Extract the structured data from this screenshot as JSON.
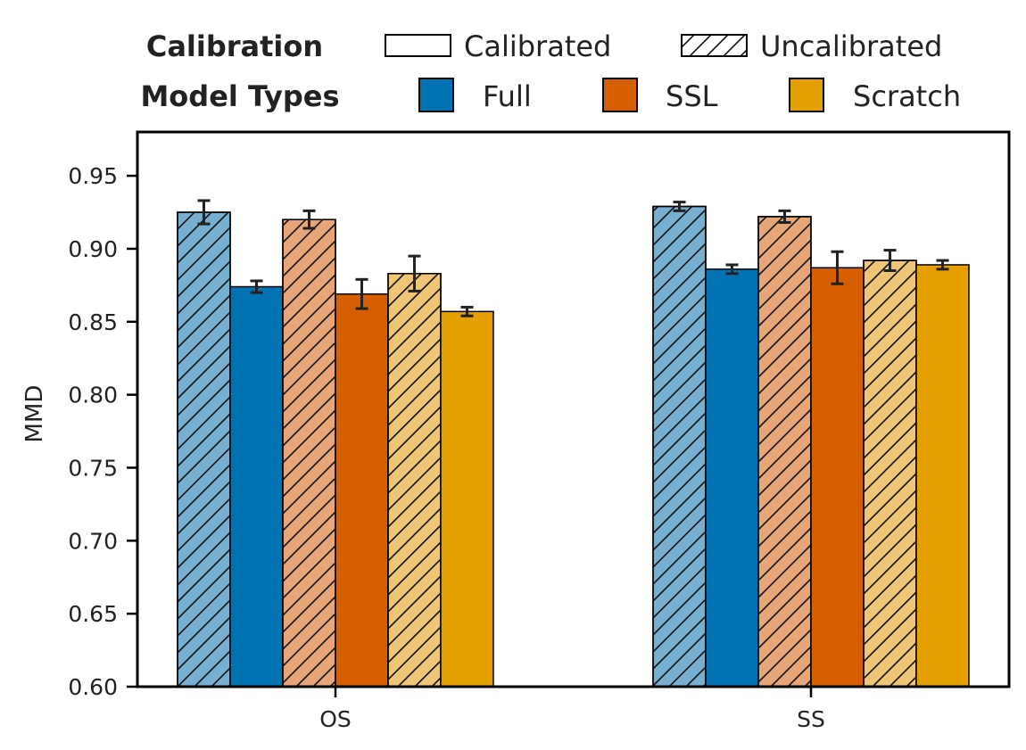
{
  "legend": {
    "calibration_title": "Calibration",
    "calibrated_label": "Calibrated",
    "uncalibrated_label": "Uncalibrated",
    "model_types_title": "Model Types",
    "model_labels": [
      "Full",
      "SSL",
      "Scratch"
    ]
  },
  "colors": {
    "Full": "#0173b2",
    "SSL": "#d55e00",
    "Scratch": "#e5a000",
    "Full_light": "#77afd1",
    "SSL_light": "#e6a677",
    "Scratch_light": "#eec676"
  },
  "chart_data": {
    "type": "bar",
    "ylabel": "MMD",
    "xlabel": "",
    "ylim": [
      0.6,
      0.98
    ],
    "yticks": [
      0.6,
      0.65,
      0.7,
      0.75,
      0.8,
      0.85,
      0.9,
      0.95
    ],
    "categories": [
      "OS",
      "SS"
    ],
    "series": [
      {
        "model": "Full",
        "calibration": "Uncalibrated",
        "values": [
          0.925,
          0.929
        ],
        "errors": [
          0.008,
          0.003
        ]
      },
      {
        "model": "Full",
        "calibration": "Calibrated",
        "values": [
          0.874,
          0.886
        ],
        "errors": [
          0.004,
          0.003
        ]
      },
      {
        "model": "SSL",
        "calibration": "Uncalibrated",
        "values": [
          0.92,
          0.922
        ],
        "errors": [
          0.006,
          0.004
        ]
      },
      {
        "model": "SSL",
        "calibration": "Calibrated",
        "values": [
          0.869,
          0.887
        ],
        "errors": [
          0.01,
          0.011
        ]
      },
      {
        "model": "Scratch",
        "calibration": "Uncalibrated",
        "values": [
          0.883,
          0.892
        ],
        "errors": [
          0.012,
          0.007
        ]
      },
      {
        "model": "Scratch",
        "calibration": "Calibrated",
        "values": [
          0.857,
          0.889
        ],
        "errors": [
          0.003,
          0.003
        ]
      }
    ],
    "grid": false,
    "legend_position": "top"
  }
}
